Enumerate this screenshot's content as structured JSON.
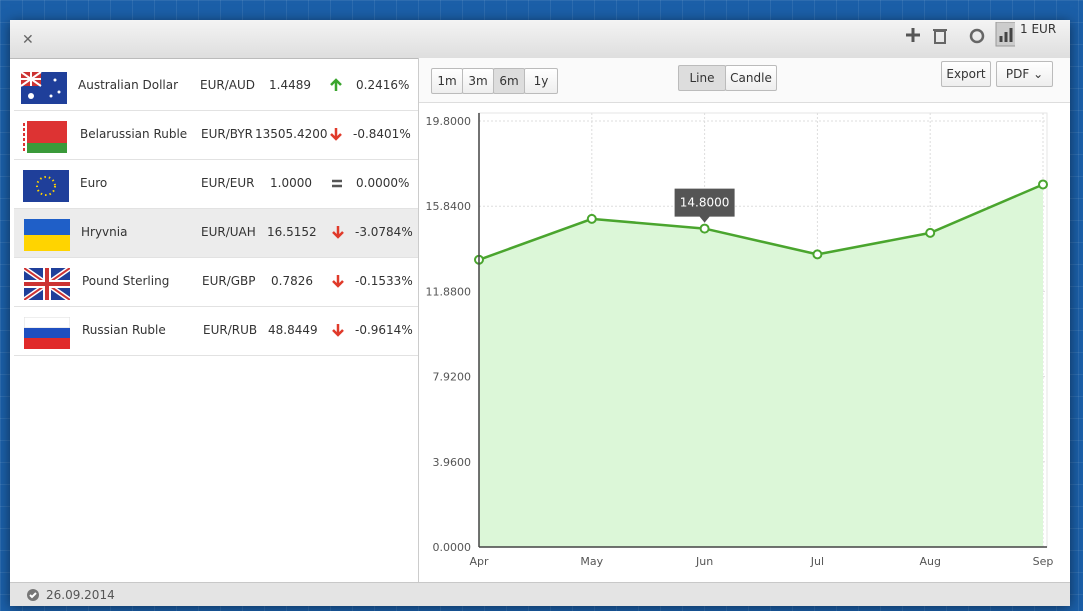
{
  "toolbar": {
    "currency": "1 EUR"
  },
  "currencies": [
    {
      "name": "Australian Dollar",
      "pair": "EUR/AUD",
      "rate": "1.4489",
      "change": "0.2416%"
    },
    {
      "name": "Belarussian Ruble",
      "pair": "EUR/BYR",
      "rate": "13505.4200",
      "change": "-0.8401%"
    },
    {
      "name": "Euro",
      "pair": "EUR/EUR",
      "rate": "1.0000",
      "change": "0.0000%"
    },
    {
      "name": "Hryvnia",
      "pair": "EUR/UAH",
      "rate": "16.5152",
      "change": "-3.0784%"
    },
    {
      "name": "Pound Sterling",
      "pair": "EUR/GBP",
      "rate": "0.7826",
      "change": "-0.1533%"
    },
    {
      "name": "Russian Ruble",
      "pair": "EUR/RUB",
      "rate": "48.8449",
      "change": "-0.9614%"
    }
  ],
  "ranges": [
    "1m",
    "3m",
    "6m",
    "1y"
  ],
  "views": [
    "Line",
    "Candle"
  ],
  "export": "Export",
  "format": "PDF",
  "status_date": "26.09.2014",
  "chart_data": {
    "type": "line",
    "categories": [
      "Apr",
      "May",
      "Jun",
      "Jul",
      "Aug",
      "Sep"
    ],
    "values": [
      13.35,
      15.25,
      14.8,
      13.6,
      14.6,
      16.85
    ],
    "value_labels": [
      null,
      null,
      "14.8000",
      null,
      null,
      null
    ],
    "color": "#4aa52e",
    "fill": "#dcf7d8",
    "ylim": [
      0,
      19.8
    ],
    "yticks": [
      {
        "value": 0,
        "label": "0.0000"
      },
      {
        "value": 3.96,
        "label": "3.9600"
      },
      {
        "value": 7.92,
        "label": "7.9200"
      },
      {
        "value": 11.88,
        "label": "11.8800"
      },
      {
        "value": 15.84,
        "label": "15.8400"
      },
      {
        "value": 19.8,
        "label": "19.8000"
      }
    ],
    "grid": true
  }
}
